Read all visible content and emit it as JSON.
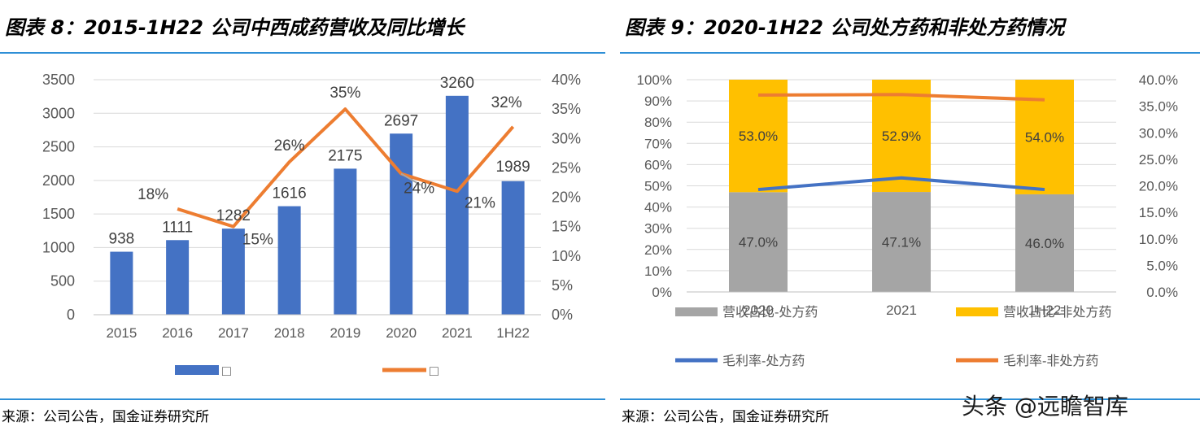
{
  "left": {
    "title": "图表 8：2015-1H22 公司中西成药营收及同比增长",
    "source": "来源：公司公告，国金证券研究所",
    "legend": [
      "□",
      "□"
    ]
  },
  "right": {
    "title": "图表 9：2020-1H22 公司处方药和非处方药情况",
    "source": "来源：公司公告，国金证券研究所",
    "legend": [
      "营收占比-处方药",
      "营收占比-非处方药",
      "毛利率-处方药",
      "毛利率-非处方药"
    ]
  },
  "watermark": "头条 @远瞻智库",
  "colors": {
    "bar": "#4472c4",
    "line": "#ed7d31",
    "grey": "#a5a5a5",
    "gold": "#ffc000",
    "rule": "#2e8fd6"
  },
  "chart_data": [
    {
      "type": "bar",
      "title": "图表 8：2015-1H22 公司中西成药营收及同比增长",
      "categories": [
        "2015",
        "2016",
        "2017",
        "2018",
        "2019",
        "2020",
        "2021",
        "1H22"
      ],
      "series": [
        {
          "type": "bar",
          "values": [
            938,
            1111,
            1282,
            1616,
            2175,
            2697,
            3260,
            1989
          ],
          "axis": "left"
        },
        {
          "type": "line",
          "values": [
            null,
            0.18,
            0.15,
            0.26,
            0.35,
            0.24,
            0.21,
            0.32
          ],
          "axis": "right",
          "labels": [
            "",
            "18%",
            "15%",
            "26%",
            "35%",
            "24%",
            "21%",
            "32%"
          ]
        }
      ],
      "ylim": [
        0,
        3500
      ],
      "y_ticks": [
        "0",
        "500",
        "1000",
        "1500",
        "2000",
        "2500",
        "3000",
        "3500"
      ],
      "y2lim": [
        0,
        0.4
      ],
      "y2_ticks": [
        "0%",
        "5%",
        "10%",
        "15%",
        "20%",
        "25%",
        "30%",
        "35%",
        "40%"
      ],
      "legend_position": "bottom",
      "grid": true
    },
    {
      "type": "bar",
      "stacked": true,
      "title": "图表 9：2020-1H22 公司处方药和非处方药情况",
      "categories": [
        "2020",
        "2021",
        "1H22"
      ],
      "series": [
        {
          "name": "营收占比-处方药",
          "type": "bar",
          "values": [
            0.47,
            0.471,
            0.46
          ],
          "labels": [
            "47.0%",
            "47.1%",
            "46.0%"
          ],
          "axis": "left"
        },
        {
          "name": "营收占比-非处方药",
          "type": "bar",
          "values": [
            0.53,
            0.529,
            0.54
          ],
          "labels": [
            "53.0%",
            "52.9%",
            "54.0%"
          ],
          "axis": "left"
        },
        {
          "name": "毛利率-处方药",
          "type": "line",
          "values": [
            0.193,
            0.215,
            0.193
          ],
          "axis": "right"
        },
        {
          "name": "毛利率-非处方药",
          "type": "line",
          "values": [
            0.371,
            0.372,
            0.362
          ],
          "axis": "right"
        }
      ],
      "ylim": [
        0,
        1
      ],
      "y_ticks": [
        "0%",
        "10%",
        "20%",
        "30%",
        "40%",
        "50%",
        "60%",
        "70%",
        "80%",
        "90%",
        "100%"
      ],
      "y2lim": [
        0,
        0.4
      ],
      "y2_ticks": [
        "0.0%",
        "5.0%",
        "10.0%",
        "15.0%",
        "20.0%",
        "25.0%",
        "30.0%",
        "35.0%",
        "40.0%"
      ],
      "legend_position": "bottom",
      "grid": true
    }
  ]
}
